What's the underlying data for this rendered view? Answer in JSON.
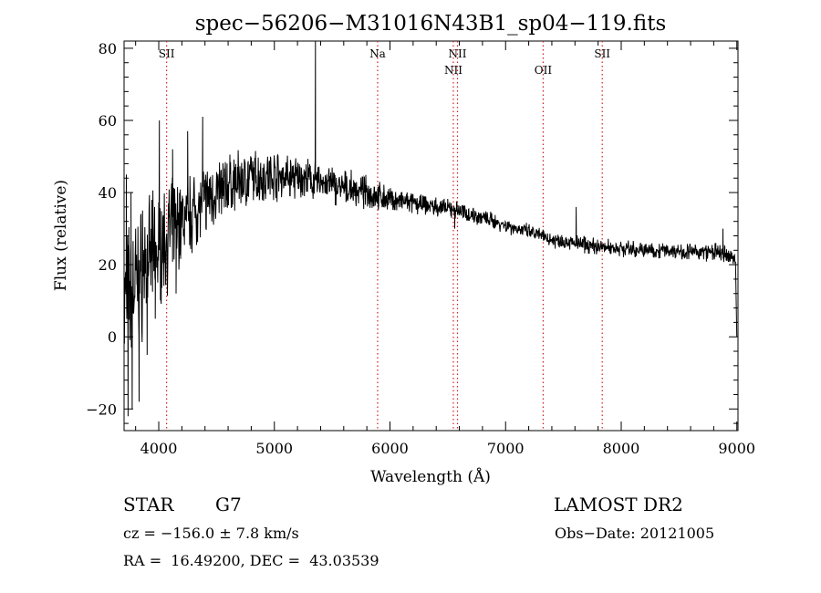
{
  "chart_data": {
    "type": "line",
    "title": "spec−56206−M31016N43B1_sp04−119.fits",
    "xlabel": "Wavelength (Å)",
    "ylabel": "Flux (relative)",
    "xlim": [
      3700,
      9010
    ],
    "ylim": [
      -26,
      82
    ],
    "xticks": [
      4000,
      5000,
      6000,
      7000,
      8000,
      9000
    ],
    "xticklabels": [
      "4000",
      "5000",
      "6000",
      "7000",
      "8000",
      "9000"
    ],
    "yticks": [
      -20,
      0,
      20,
      40,
      60,
      80
    ],
    "yticklabels": [
      "−20",
      "0",
      "20",
      "40",
      "60",
      "80"
    ],
    "line_color": "#000000",
    "marker_color": "#d22020",
    "markers": [
      {
        "label": "SII",
        "wavelength": 4068,
        "level": 0
      },
      {
        "label": "Na",
        "wavelength": 5893,
        "level": 0
      },
      {
        "label": "NII",
        "wavelength": 6548,
        "level": 1
      },
      {
        "label": "NII",
        "wavelength": 6584,
        "level": 0
      },
      {
        "label": "OII",
        "wavelength": 7325,
        "level": 1
      },
      {
        "label": "SII",
        "wavelength": 7836,
        "level": 0
      }
    ],
    "spectrum": {
      "continuum_x": [
        3700,
        3760,
        3800,
        3900,
        4000,
        4100,
        4200,
        4300,
        4400,
        4500,
        4600,
        4700,
        4800,
        4900,
        5000,
        5100,
        5200,
        5300,
        5400,
        5500,
        5600,
        5700,
        5800,
        5900,
        6000,
        6100,
        6200,
        6300,
        6400,
        6500,
        6600,
        6700,
        6800,
        6900,
        7000,
        7100,
        7200,
        7300,
        7400,
        7500,
        7600,
        7700,
        7800,
        7900,
        8000,
        8200,
        8400,
        8600,
        8800,
        8950,
        9000
      ],
      "continuum_y": [
        10,
        12,
        15,
        20,
        24,
        29,
        32,
        35,
        38,
        40,
        42,
        43,
        44,
        44.5,
        45,
        44.5,
        44,
        43.5,
        43,
        42,
        41,
        40.5,
        40,
        39,
        38,
        37.5,
        37,
        36.5,
        36,
        35.5,
        35,
        34,
        33,
        32,
        31,
        30,
        29,
        28,
        27,
        26.5,
        26,
        25.5,
        25,
        24.8,
        24.5,
        24,
        24,
        23.5,
        23.5,
        22,
        21
      ],
      "noise_x": [
        3700,
        3800,
        3900,
        4000,
        4100,
        4200,
        4400,
        4600,
        4800,
        5000,
        5200,
        5400,
        5600,
        5800,
        6000,
        6200,
        6500,
        6700,
        7000,
        7500,
        8000,
        8500,
        8900,
        9000
      ],
      "noise_amp": [
        12,
        11,
        10,
        9,
        8,
        7,
        5.5,
        5,
        4.5,
        4,
        3.5,
        3.2,
        3,
        2.5,
        2,
        1.7,
        1.5,
        1.4,
        1.3,
        1.3,
        1.3,
        1.3,
        1.5,
        1.6
      ],
      "features": [
        {
          "x": 3720,
          "y": 45
        },
        {
          "x": 3735,
          "y": -22
        },
        {
          "x": 3760,
          "y": 40
        },
        {
          "x": 3770,
          "y": -20
        },
        {
          "x": 3800,
          "y": 30
        },
        {
          "x": 3830,
          "y": -18
        },
        {
          "x": 3860,
          "y": 35
        },
        {
          "x": 3900,
          "y": -5
        },
        {
          "x": 3940,
          "y": 38
        },
        {
          "x": 3970,
          "y": 5
        },
        {
          "x": 4005,
          "y": 60
        },
        {
          "x": 4120,
          "y": 52
        },
        {
          "x": 4150,
          "y": 12
        },
        {
          "x": 4250,
          "y": 57
        },
        {
          "x": 4380,
          "y": 61
        },
        {
          "x": 5355,
          "y": 82
        },
        {
          "x": 6560,
          "y": 30
        },
        {
          "x": 7610,
          "y": 36
        },
        {
          "x": 8880,
          "y": 30
        }
      ],
      "end_drop": [
        {
          "x": 9000,
          "y": 0
        }
      ]
    }
  },
  "info": {
    "object_class": "STAR",
    "subclass": "G7",
    "survey": "LAMOST DR2",
    "cz": "cz = −156.0 ± 7.8 km/s",
    "obs_date": "Obs−Date: 20121005",
    "coords": "RA =  16.49200, DEC =  43.03539"
  }
}
